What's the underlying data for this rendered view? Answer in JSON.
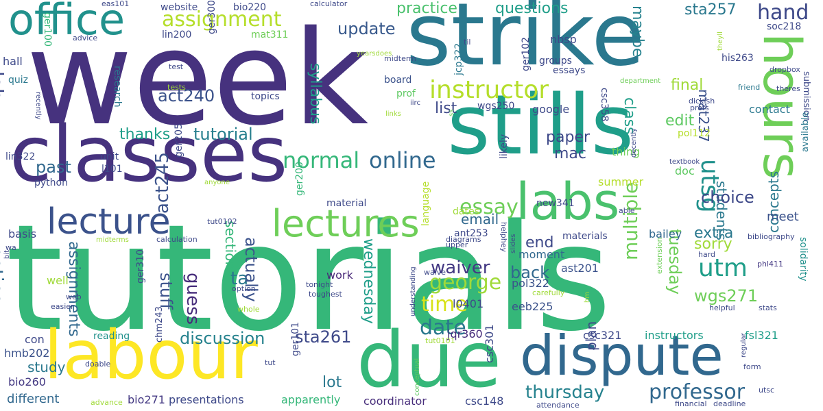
{
  "words": [
    {
      "text": "tutorials",
      "color": "#35b779"
    },
    {
      "text": "week",
      "color": "#46327e"
    },
    {
      "text": "strike",
      "color": "#2a788e"
    },
    {
      "text": "stills",
      "color": "#1f9e89"
    },
    {
      "text": "classes",
      "color": "#46327e"
    },
    {
      "text": "labour",
      "color": "#fde725"
    },
    {
      "text": "due",
      "color": "#35b779"
    },
    {
      "text": "dispute",
      "color": "#31688e"
    },
    {
      "text": "labs",
      "color": "#4ac16d"
    },
    {
      "text": "hours",
      "color": "#6ece58"
    },
    {
      "text": "office",
      "color": "#21918c"
    },
    {
      "text": "lectures",
      "color": "#6ece58"
    },
    {
      "text": "lecture",
      "color": "#3b528b"
    },
    {
      "text": "instructor",
      "color": "#b5de2b"
    },
    {
      "text": "assignment",
      "color": "#b5de2b"
    },
    {
      "text": "george",
      "color": "#a0da39"
    },
    {
      "text": "professor",
      "color": "#31688e"
    },
    {
      "text": "utm",
      "color": "#1f9e89"
    },
    {
      "text": "utsg",
      "color": "#21918c"
    },
    {
      "text": "online",
      "color": "#31688e"
    },
    {
      "text": "normal",
      "color": "#35b779"
    },
    {
      "text": "essay",
      "color": "#6ece58"
    },
    {
      "text": "date",
      "color": "#2a788e"
    },
    {
      "text": "time",
      "color": "#d8e219"
    },
    {
      "text": "thursday",
      "color": "#26828e"
    },
    {
      "text": "discussion",
      "color": "#26828e"
    },
    {
      "text": "sta261",
      "color": "#3e4989"
    },
    {
      "text": "waiver",
      "color": "#443983"
    },
    {
      "text": "hand",
      "color": "#3e4989"
    },
    {
      "text": "update",
      "color": "#38598c"
    },
    {
      "text": "practice",
      "color": "#4ac16d"
    },
    {
      "text": "questions",
      "color": "#1f9e89"
    },
    {
      "text": "sta257",
      "color": "#2a788e"
    },
    {
      "text": "maybe",
      "color": "#26828e"
    },
    {
      "text": "syllabus",
      "color": "#1f9e89"
    },
    {
      "text": "tutorial",
      "color": "#277f8e"
    },
    {
      "text": "thanks",
      "color": "#1f9e89"
    },
    {
      "text": "past",
      "color": "#31688e"
    },
    {
      "text": "act240",
      "color": "#3b528b"
    },
    {
      "text": "act245",
      "color": "#3b528b"
    },
    {
      "text": "lab",
      "color": "#3e4989"
    },
    {
      "text": "notice",
      "color": "#31688e"
    },
    {
      "text": "assignments",
      "color": "#31688e"
    },
    {
      "text": "sections",
      "color": "#35b779"
    },
    {
      "text": "stuff",
      "color": "#3b528b"
    },
    {
      "text": "guess",
      "color": "#472d7b"
    },
    {
      "text": "ta",
      "color": "#2a788e"
    },
    {
      "text": "actually",
      "color": "#3b528b"
    },
    {
      "text": "wednesday",
      "color": "#1f9e89"
    },
    {
      "text": "multiple",
      "color": "#6ece58"
    },
    {
      "text": "tuesday",
      "color": "#6ece58"
    },
    {
      "text": "students",
      "color": "#2a788e"
    },
    {
      "text": "concepts",
      "color": "#2a788e"
    },
    {
      "text": "choice",
      "color": "#3e4989"
    },
    {
      "text": "extra",
      "color": "#2a788e"
    },
    {
      "text": "sorry",
      "color": "#a0da39"
    },
    {
      "text": "end",
      "color": "#3e4989"
    },
    {
      "text": "back",
      "color": "#31688e"
    },
    {
      "text": "wgs271",
      "color": "#6ece58"
    },
    {
      "text": "email",
      "color": "#31688e"
    },
    {
      "text": "paper",
      "color": "#3e4989"
    },
    {
      "text": "mac",
      "color": "#3e4989"
    },
    {
      "text": "list",
      "color": "#3e4989"
    },
    {
      "text": "final",
      "color": "#a0da39"
    },
    {
      "text": "edit",
      "color": "#5ec962"
    },
    {
      "text": "class",
      "color": "#1f9e89"
    },
    {
      "text": "mat237",
      "color": "#3b528b"
    },
    {
      "text": "contact",
      "color": "#2a788e"
    },
    {
      "text": "meet",
      "color": "#3b528b"
    },
    {
      "text": "coordinator",
      "color": "#472d7b"
    },
    {
      "text": "presentations",
      "color": "#3e4989"
    },
    {
      "text": "apparently",
      "color": "#35b779"
    },
    {
      "text": "different",
      "color": "#31688e"
    },
    {
      "text": "study",
      "color": "#2a788e"
    },
    {
      "text": "lot",
      "color": "#2a788e"
    },
    {
      "text": "plan",
      "color": "#3e4989"
    },
    {
      "text": "instructors",
      "color": "#1f9e89"
    },
    {
      "text": "summer",
      "color": "#b5de2b"
    },
    {
      "text": "eeb225",
      "color": "#3b528b"
    },
    {
      "text": "fsl321",
      "color": "#1f9e89"
    },
    {
      "text": "csc321",
      "color": "#3e4989"
    },
    {
      "text": "csc301",
      "color": "#3e4989"
    },
    {
      "text": "csc148",
      "color": "#3e4989"
    },
    {
      "text": "jqr360",
      "color": "#472d7b"
    },
    {
      "text": "l0401",
      "color": "#3e4989"
    },
    {
      "text": "bio271",
      "color": "#443983"
    },
    {
      "text": "bio260",
      "color": "#443983"
    },
    {
      "text": "hmb202",
      "color": "#3b528b"
    },
    {
      "text": "con",
      "color": "#3e4989"
    },
    {
      "text": "reading",
      "color": "#21918c"
    },
    {
      "text": "work",
      "color": "#482878"
    },
    {
      "text": "moment",
      "color": "#31688e"
    },
    {
      "text": "ast201",
      "color": "#3b528b"
    },
    {
      "text": "pol322",
      "color": "#3b528b"
    },
    {
      "text": "materials",
      "color": "#3e4989"
    },
    {
      "text": "bailey",
      "color": "#31688e"
    },
    {
      "text": "new341",
      "color": "#3e4989"
    },
    {
      "text": "likely",
      "color": "#3e4989"
    },
    {
      "text": "language",
      "color": "#b5de2b"
    },
    {
      "text": "dates",
      "color": "#a0da39"
    },
    {
      "text": "ant253",
      "color": "#3e4989"
    },
    {
      "text": "material",
      "color": "#3e4989"
    },
    {
      "text": "google",
      "color": "#3e4989"
    },
    {
      "text": "thing",
      "color": "#6ece58"
    },
    {
      "text": "doc",
      "color": "#5ec962"
    },
    {
      "text": "pol112",
      "color": "#b5de2b"
    },
    {
      "text": "csc358",
      "color": "#3e4989"
    },
    {
      "text": "ger102",
      "color": "#3e4989"
    },
    {
      "text": "groups",
      "color": "#3e4989"
    },
    {
      "text": "essays",
      "color": "#3e4989"
    },
    {
      "text": "nbsp",
      "color": "#3e4989"
    },
    {
      "text": "jcp322",
      "color": "#2a788e"
    },
    {
      "text": "board",
      "color": "#3b528b"
    },
    {
      "text": "prof",
      "color": "#5ec962"
    },
    {
      "text": "wgs250",
      "color": "#3e4989"
    },
    {
      "text": "his263",
      "color": "#3e4989"
    },
    {
      "text": "soc218",
      "color": "#3e4989"
    },
    {
      "text": "dropbox",
      "color": "#3e4989"
    },
    {
      "text": "friend",
      "color": "#2a788e"
    },
    {
      "text": "submission",
      "color": "#3e4989"
    },
    {
      "text": "available",
      "color": "#2a788e"
    },
    {
      "text": "solidarity",
      "color": "#21918c"
    },
    {
      "text": "bibliography",
      "color": "#3e4989"
    },
    {
      "text": "phl411",
      "color": "#443983"
    },
    {
      "text": "stats",
      "color": "#3e4989"
    },
    {
      "text": "hard",
      "color": "#3e4989"
    },
    {
      "text": "form",
      "color": "#3e4989"
    },
    {
      "text": "utsc",
      "color": "#3e4989"
    },
    {
      "text": "deadline",
      "color": "#3e4989"
    },
    {
      "text": "financial",
      "color": "#3e4989"
    },
    {
      "text": "regular",
      "color": "#3e4989"
    },
    {
      "text": "helpful",
      "color": "#3e4989"
    },
    {
      "text": "extension",
      "color": "#6ece58"
    },
    {
      "text": "hm",
      "color": "#a0da39"
    },
    {
      "text": "carefully",
      "color": "#a0da39"
    },
    {
      "text": "attendance",
      "color": "#3e4989"
    },
    {
      "text": "understanding",
      "color": "#3e4989"
    },
    {
      "text": "waive",
      "color": "#3e4989"
    },
    {
      "text": "tut0101",
      "color": "#a0da39"
    },
    {
      "text": "conceptual",
      "color": "#5ec962"
    },
    {
      "text": "toughest",
      "color": "#3e4989"
    },
    {
      "text": "tonight",
      "color": "#3e4989"
    },
    {
      "text": "option",
      "color": "#3e4989"
    },
    {
      "text": "whole",
      "color": "#a0da39"
    },
    {
      "text": "upper",
      "color": "#3e4989"
    },
    {
      "text": "diagrams",
      "color": "#3e4989"
    },
    {
      "text": "slides",
      "color": "#3e4989"
    },
    {
      "text": "helphey",
      "color": "#3e4989"
    },
    {
      "text": "able",
      "color": "#3e4989"
    },
    {
      "text": "textbook",
      "color": "#3e4989"
    },
    {
      "text": "decently",
      "color": "#3e4989"
    },
    {
      "text": "profs",
      "color": "#3e4989"
    },
    {
      "text": "dickish",
      "color": "#3e4989"
    },
    {
      "text": "theres",
      "color": "#3e4989"
    },
    {
      "text": "department",
      "color": "#6ece58"
    },
    {
      "text": "theyll",
      "color": "#a0da39"
    },
    {
      "text": "til",
      "color": "#3e4989"
    },
    {
      "text": "yearsdoes",
      "color": "#a0da39"
    },
    {
      "text": "midterm",
      "color": "#3e4989"
    },
    {
      "text": "calculator",
      "color": "#3e4989"
    },
    {
      "text": "eas101",
      "color": "#3e4989"
    },
    {
      "text": "website",
      "color": "#3e4989"
    },
    {
      "text": "bio220",
      "color": "#3e4989"
    },
    {
      "text": "mat311",
      "color": "#6ece58"
    },
    {
      "text": "lin200",
      "color": "#3e4989"
    },
    {
      "text": "ger300",
      "color": "#3e4989"
    },
    {
      "text": "advice",
      "color": "#3e4989"
    },
    {
      "text": "ger100",
      "color": "#35b779"
    },
    {
      "text": "hall",
      "color": "#3e4989"
    },
    {
      "text": "quiz",
      "color": "#2a788e"
    },
    {
      "text": "recently",
      "color": "#3e4989"
    },
    {
      "text": "research",
      "color": "#2a788e"
    },
    {
      "text": "test",
      "color": "#3e4989"
    },
    {
      "text": "tests",
      "color": "#a0da39"
    },
    {
      "text": "topics",
      "color": "#3e4989"
    },
    {
      "text": "links",
      "color": "#a0da39"
    },
    {
      "text": "iirc",
      "color": "#3e4989"
    },
    {
      "text": "ss",
      "color": "#6ece58"
    },
    {
      "text": "lin322",
      "color": "#3e4989"
    },
    {
      "text": "unit",
      "color": "#3e4989"
    },
    {
      "text": "l101",
      "color": "#3e4989"
    },
    {
      "text": "python",
      "color": "#3e4989"
    },
    {
      "text": "ger205",
      "color": "#3e4989"
    },
    {
      "text": "anyone",
      "color": "#a0da39"
    },
    {
      "text": "ger200",
      "color": "#35b779"
    },
    {
      "text": "tut0102",
      "color": "#3e4989"
    },
    {
      "text": "basis",
      "color": "#3e4989"
    },
    {
      "text": "wa",
      "color": "#3e4989"
    },
    {
      "text": "calculation",
      "color": "#3e4989"
    },
    {
      "text": "midterms",
      "color": "#a0da39"
    },
    {
      "text": "ger310",
      "color": "#3e4989"
    },
    {
      "text": "bit",
      "color": "#3e4989"
    },
    {
      "text": "well",
      "color": "#a0da39"
    },
    {
      "text": "web",
      "color": "#3e4989"
    },
    {
      "text": "easier",
      "color": "#3e4989"
    },
    {
      "text": "doable",
      "color": "#3e4989"
    },
    {
      "text": "chm243",
      "color": "#3e4989"
    },
    {
      "text": "ger101",
      "color": "#3e4989"
    },
    {
      "text": "tut",
      "color": "#3e4989"
    },
    {
      "text": "advance",
      "color": "#a0da39"
    }
  ]
}
